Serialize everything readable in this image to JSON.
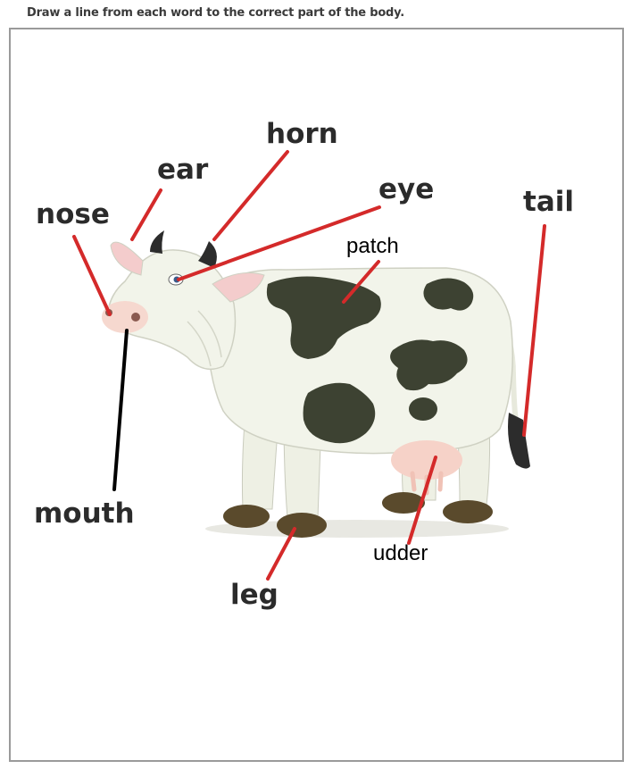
{
  "worksheet": {
    "instruction": "Draw a line from each word to the correct part of the body."
  },
  "labels": {
    "horn": "horn",
    "ear": "ear",
    "eye": "eye",
    "nose": "nose",
    "tail": "tail",
    "patch": "patch",
    "mouth": "mouth",
    "leg": "leg",
    "udder": "udder"
  },
  "colors": {
    "line_red": "#d42a2a",
    "line_black": "#000000",
    "cow_body": "#f2f4ea",
    "cow_patch": "#3d4232",
    "hoof": "#5a4a2c",
    "udder": "#f6d2c8"
  }
}
